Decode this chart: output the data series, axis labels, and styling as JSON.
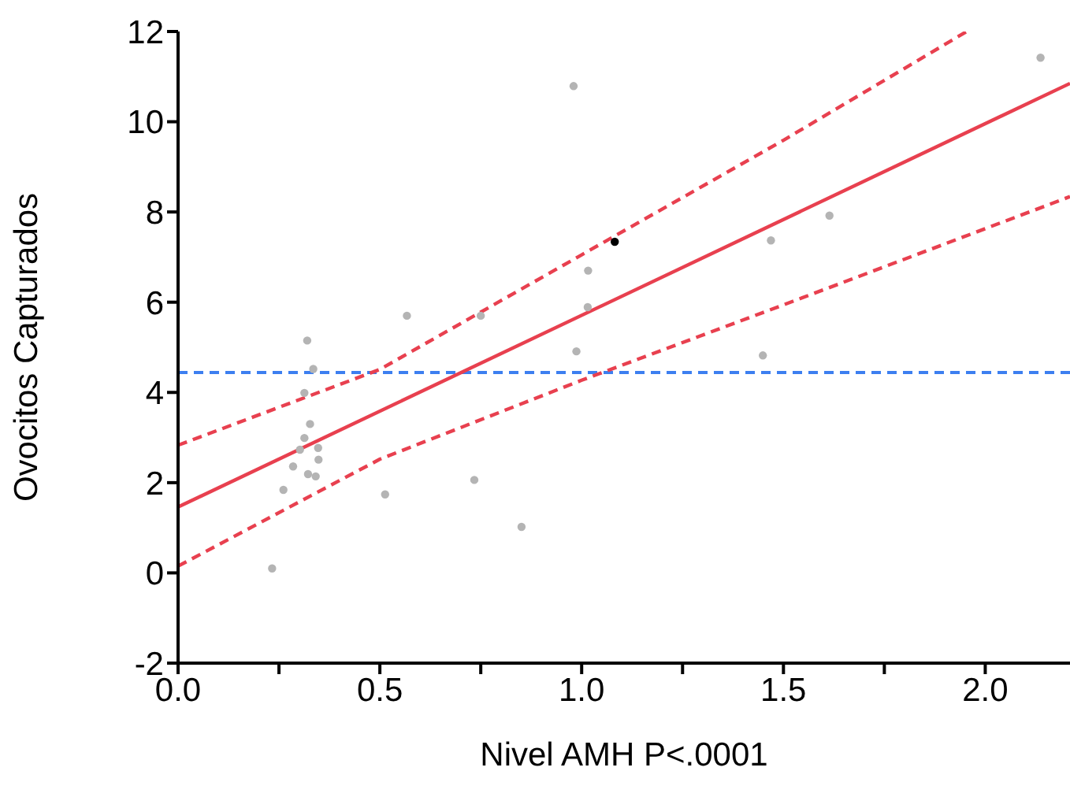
{
  "chart_data": {
    "type": "scatter",
    "xlabel": "Nivel AMH P<.0001",
    "ylabel": "Ovocitos Capturados",
    "xlim": [
      0,
      2.21
    ],
    "ylim": [
      -2,
      12
    ],
    "xticks": [
      {
        "value": 0,
        "label": "0.0"
      },
      {
        "value": 0.25,
        "label": null
      },
      {
        "value": 0.5,
        "label": "0.5"
      },
      {
        "value": 0.75,
        "label": null
      },
      {
        "value": 1,
        "label": "1.0"
      },
      {
        "value": 1.25,
        "label": null
      },
      {
        "value": 1.5,
        "label": "1.5"
      },
      {
        "value": 1.75,
        "label": null
      },
      {
        "value": 2,
        "label": "2.0"
      }
    ],
    "yticks": [
      -2,
      0,
      2,
      4,
      6,
      8,
      10,
      12
    ],
    "grid": false,
    "series": [
      {
        "marker": "circle",
        "color": "#b4b4b4",
        "x": [
          0.567,
          0.75,
          0.32,
          0.335,
          0.313,
          0.327,
          0.313,
          0.302,
          0.347,
          0.348,
          0.285,
          0.322,
          0.341,
          0.261,
          0.513,
          0.734,
          0.851,
          0.233,
          0.98,
          2.137,
          1.016,
          1.015,
          0.987,
          1.469,
          1.614,
          1.449
        ],
        "values": [
          5.7,
          5.7,
          5.15,
          4.52,
          3.99,
          3.3,
          2.99,
          2.73,
          2.77,
          2.51,
          2.36,
          2.19,
          2.14,
          1.84,
          1.74,
          2.06,
          1.02,
          0.1,
          10.79,
          11.42,
          6.7,
          5.89,
          4.91,
          7.37,
          7.92,
          4.82
        ]
      },
      {
        "marker": "circle",
        "color": "#000000",
        "x": [
          1.082
        ],
        "values": [
          7.34
        ]
      },
      {
        "type": "line",
        "marker": "none",
        "line_style": "solid",
        "color": "#e8404f",
        "x": [
          0,
          2.21
        ],
        "values": [
          1.46,
          10.85
        ]
      },
      {
        "type": "line",
        "marker": "none",
        "line_style": "dashed",
        "color": "#e8404f",
        "x": [
          0,
          0.5,
          1,
          1.5,
          1.954
        ],
        "values": [
          2.83,
          4.51,
          7.05,
          9.59,
          12
        ]
      },
      {
        "type": "line",
        "marker": "none",
        "line_style": "dashed",
        "color": "#e8404f",
        "x": [
          0,
          0.5,
          1,
          1.5,
          2.21
        ],
        "values": [
          0.15,
          2.52,
          4.27,
          5.94,
          8.34
        ]
      }
    ],
    "ref_lines": [
      {
        "axis": "y",
        "value": 4.44,
        "color": "#3d7ff0",
        "line_style": "dashed"
      }
    ]
  }
}
